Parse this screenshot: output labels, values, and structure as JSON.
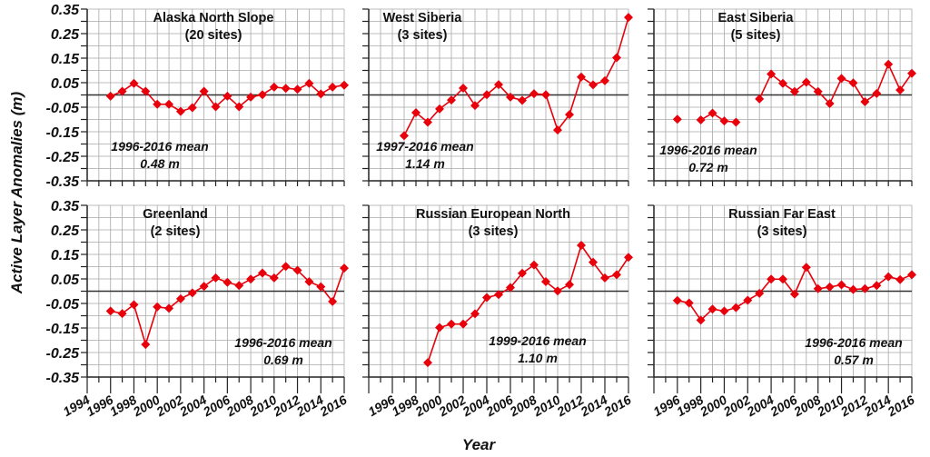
{
  "chart_data": {
    "type": "line",
    "ylabel": "Active Layer Anomalies (m)",
    "xlabel": "Year",
    "xlim": [
      1994,
      2016
    ],
    "ylim": [
      -0.35,
      0.35
    ],
    "yticks": [
      "0.35",
      "0.25",
      "0.15",
      "0.05",
      "-0.05",
      "-0.15",
      "-0.25",
      "-0.35"
    ],
    "xticks_first_column": [
      "1994",
      "1996",
      "1998",
      "2000",
      "2002",
      "2004",
      "2006",
      "2008",
      "2010",
      "2012",
      "2014",
      "2016"
    ],
    "xticks_other_columns": [
      "1996",
      "1998",
      "2000",
      "2002",
      "2004",
      "2006",
      "2008",
      "2010",
      "2012",
      "2014",
      "2016"
    ],
    "grid": true,
    "series_color": "#e8000b",
    "years": [
      1996,
      1997,
      1998,
      1999,
      2000,
      2001,
      2002,
      2003,
      2004,
      2005,
      2006,
      2007,
      2008,
      2009,
      2010,
      2011,
      2012,
      2013,
      2014,
      2015,
      2016
    ],
    "panels": [
      {
        "name": "Alaska North Slope",
        "sites": "(20 sites)",
        "mean_label": "1996-2016 mean",
        "mean_value": "0.48 m",
        "values": [
          -0.005,
          0.015,
          0.047,
          0.015,
          -0.038,
          -0.038,
          -0.067,
          -0.052,
          0.015,
          -0.048,
          -0.005,
          -0.048,
          -0.009,
          0.001,
          0.032,
          0.027,
          0.023,
          0.047,
          0.004,
          0.032,
          0.04
        ]
      },
      {
        "name": "West Siberia",
        "sites": "(3 sites)",
        "mean_label": "1997-2016 mean",
        "mean_value": "1.14 m",
        "values": [
          null,
          -0.166,
          -0.072,
          -0.111,
          -0.057,
          -0.021,
          0.028,
          -0.043,
          0.001,
          0.042,
          -0.009,
          -0.022,
          0.005,
          0.001,
          -0.143,
          -0.08,
          0.073,
          0.041,
          0.058,
          0.152,
          0.316
        ]
      },
      {
        "name": "East Siberia",
        "sites": "(5 sites)",
        "mean_label": "1996-2016 mean",
        "mean_value": "0.72 m",
        "values": [
          -0.099,
          null,
          -0.102,
          -0.074,
          -0.106,
          -0.111,
          null,
          -0.016,
          0.085,
          0.047,
          0.014,
          0.052,
          0.014,
          -0.035,
          0.067,
          0.049,
          -0.028,
          0.006,
          0.125,
          0.02,
          0.088
        ]
      },
      {
        "name": "Greenland",
        "sites": "(2 sites)",
        "mean_label": "1996-2016 mean",
        "mean_value": "0.69 m",
        "values": [
          -0.081,
          -0.091,
          -0.055,
          -0.217,
          -0.064,
          -0.07,
          -0.031,
          -0.007,
          0.02,
          0.054,
          0.036,
          0.023,
          0.049,
          0.074,
          0.054,
          0.101,
          0.085,
          0.039,
          0.018,
          -0.042,
          0.094
        ]
      },
      {
        "name": "Russian European North",
        "sites": "(3 sites)",
        "mean_label": "1999-2016 mean",
        "mean_value": "1.10 m",
        "values": [
          null,
          null,
          null,
          -0.291,
          -0.148,
          -0.134,
          -0.134,
          -0.092,
          -0.026,
          -0.014,
          0.015,
          0.073,
          0.107,
          0.039,
          0.001,
          0.027,
          0.187,
          0.118,
          0.054,
          0.067,
          0.138
        ]
      },
      {
        "name": "Russian Far East",
        "sites": "(3 sites)",
        "mean_label": "1996-2016 mean",
        "mean_value": "0.57 m",
        "values": [
          -0.038,
          -0.048,
          -0.118,
          -0.073,
          -0.081,
          -0.067,
          -0.037,
          -0.009,
          0.049,
          0.049,
          -0.012,
          0.097,
          0.01,
          0.017,
          0.026,
          0.007,
          0.01,
          0.023,
          0.059,
          0.047,
          0.067
        ]
      }
    ]
  }
}
